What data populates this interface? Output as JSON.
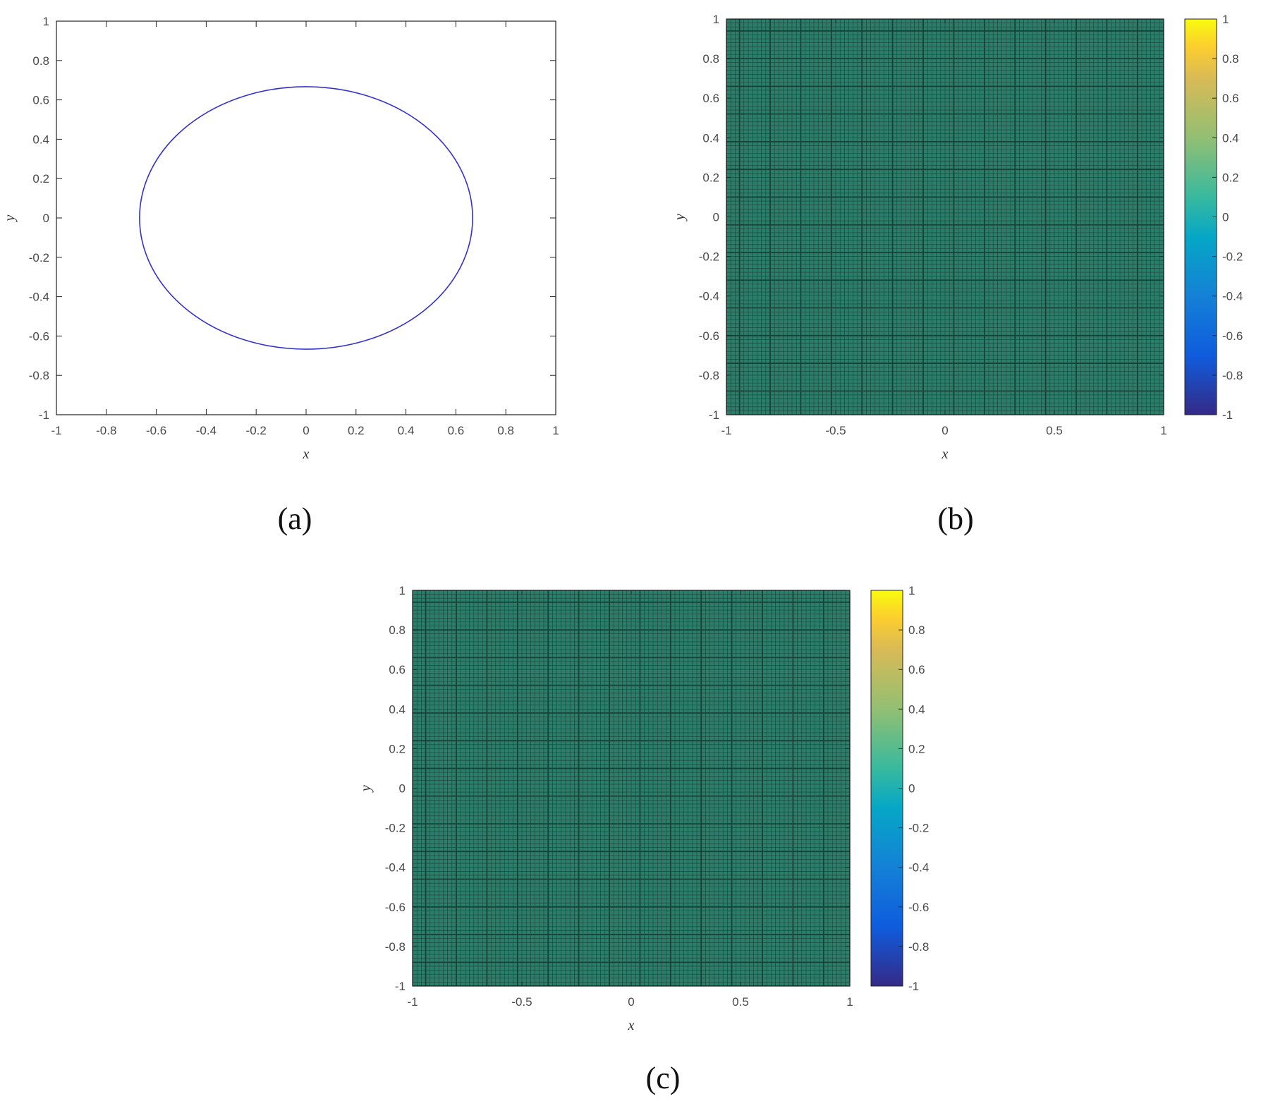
{
  "captions": {
    "a": "(a)",
    "b": "(b)",
    "c": "(c)"
  },
  "chart_data": [
    {
      "id": "a",
      "type": "line",
      "xlabel": "x",
      "ylabel": "y",
      "xlim": [
        -1,
        1
      ],
      "ylim": [
        -1,
        1
      ],
      "xticks": [
        "-1",
        "-0.8",
        "-0.6",
        "-0.4",
        "-0.2",
        "0",
        "0.2",
        "0.4",
        "0.6",
        "0.8",
        "1"
      ],
      "yticks": [
        "-1",
        "-0.8",
        "-0.6",
        "-0.4",
        "-0.2",
        "0",
        "0.2",
        "0.4",
        "0.6",
        "0.8",
        "1"
      ],
      "grid": false,
      "series": [
        {
          "shape": "circle",
          "center": [
            0,
            0
          ],
          "radius": 0.667,
          "color": "#3333cc"
        }
      ]
    },
    {
      "id": "b",
      "type": "heatmap",
      "xlabel": "x",
      "ylabel": "y",
      "xlim": [
        -1,
        1
      ],
      "ylim": [
        -1,
        1
      ],
      "xticks": [
        "-1",
        "-0.5",
        "0",
        "0.5",
        "1"
      ],
      "yticks": [
        "-1",
        "-0.8",
        "-0.6",
        "-0.4",
        "-0.2",
        "0",
        "0.2",
        "0.4",
        "0.6",
        "0.8",
        "1"
      ],
      "colorbar": {
        "range": [
          -1,
          1
        ],
        "ticks": [
          "-1",
          "-0.8",
          "-0.6",
          "-0.4",
          "-0.2",
          "0",
          "0.2",
          "0.4",
          "0.6",
          "0.8",
          "1"
        ],
        "colormap": "parula"
      },
      "field_value": 0,
      "cell_color": "#2d7d6b",
      "mesh_color": "#0d2a22"
    },
    {
      "id": "c",
      "type": "heatmap",
      "xlabel": "x",
      "ylabel": "y",
      "xlim": [
        -1,
        1
      ],
      "ylim": [
        -1,
        1
      ],
      "xticks": [
        "-1",
        "-0.5",
        "0",
        "0.5",
        "1"
      ],
      "yticks": [
        "-1",
        "-0.8",
        "-0.6",
        "-0.4",
        "-0.2",
        "0",
        "0.2",
        "0.4",
        "0.6",
        "0.8",
        "1"
      ],
      "colorbar": {
        "range": [
          -1,
          1
        ],
        "ticks": [
          "-1",
          "-0.8",
          "-0.6",
          "-0.4",
          "-0.2",
          "0",
          "0.2",
          "0.4",
          "0.6",
          "0.8",
          "1"
        ],
        "colormap": "parula"
      },
      "field_value": 0,
      "cell_color": "#2d7d6b",
      "mesh_color": "#0d2a22"
    }
  ]
}
